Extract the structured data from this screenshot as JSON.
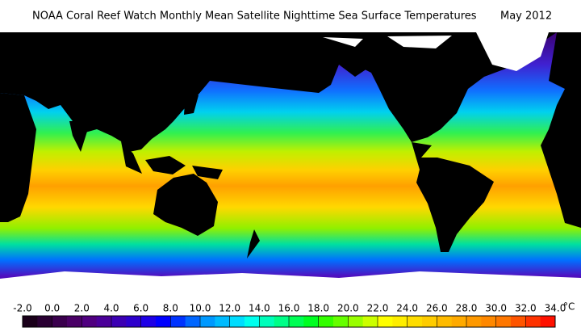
{
  "header": {
    "title": "NOAA Coral Reef Watch Monthly Mean Satellite Nighttime Sea Surface Temperatures",
    "date": "May 2012"
  },
  "colorbar": {
    "range": [
      -2,
      34
    ],
    "unit": "°C",
    "ticks": [
      {
        "value": -2,
        "label": "-2.0"
      },
      {
        "value": 0,
        "label": "0.0"
      },
      {
        "value": 2,
        "label": "2.0"
      },
      {
        "value": 4,
        "label": "4.0"
      },
      {
        "value": 6,
        "label": "6.0"
      },
      {
        "value": 8,
        "label": "8.0"
      },
      {
        "value": 10,
        "label": "10.0"
      },
      {
        "value": 12,
        "label": "12.0"
      },
      {
        "value": 14,
        "label": "14.0"
      },
      {
        "value": 16,
        "label": "16.0"
      },
      {
        "value": 18,
        "label": "18.0"
      },
      {
        "value": 20,
        "label": "20.0"
      },
      {
        "value": 22,
        "label": "22.0"
      },
      {
        "value": 24,
        "label": "24.0"
      },
      {
        "value": 26,
        "label": "26.0"
      },
      {
        "value": 28,
        "label": "28.0"
      },
      {
        "value": 30,
        "label": "30.0"
      },
      {
        "value": 32,
        "label": "32.0"
      },
      {
        "value": 34,
        "label": "34.0"
      }
    ],
    "colors": [
      "#1a001a",
      "#2a0033",
      "#3a004d",
      "#4a0066",
      "#500080",
      "#4b0099",
      "#3c00b3",
      "#2d00cc",
      "#1e00e6",
      "#0000ff",
      "#0033ff",
      "#0066ff",
      "#0099ff",
      "#00bbff",
      "#00ddff",
      "#00ffee",
      "#00ffbb",
      "#00ff88",
      "#00ff55",
      "#00ff22",
      "#33ff00",
      "#66ff00",
      "#99ff00",
      "#ccff00",
      "#ffff00",
      "#ffee00",
      "#ffdd00",
      "#ffcc00",
      "#ffbb00",
      "#ffaa00",
      "#ff9900",
      "#ff8800",
      "#ff7700",
      "#ff5500",
      "#ff3300",
      "#ff1100"
    ]
  }
}
